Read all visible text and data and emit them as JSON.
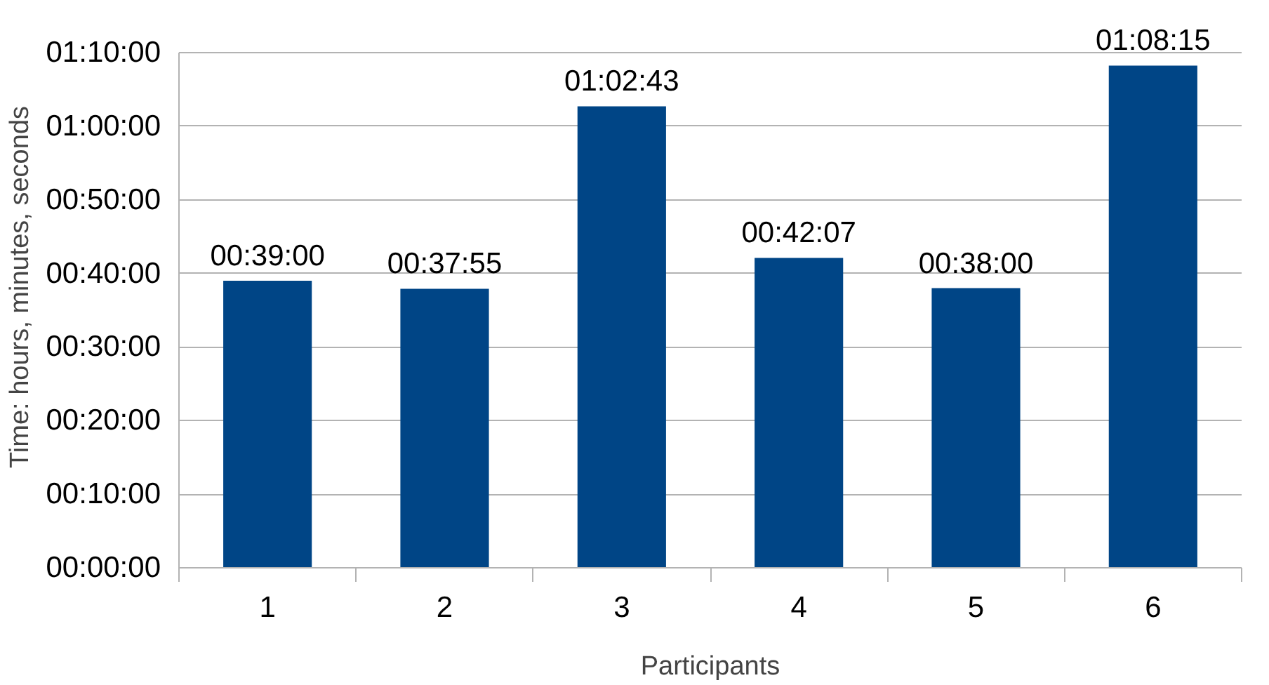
{
  "chart_data": {
    "type": "bar",
    "xlabel": "Participants",
    "ylabel": "Time: hours, minutes, seconds",
    "categories": [
      "1",
      "2",
      "3",
      "4",
      "5",
      "6"
    ],
    "values": [
      2340,
      2275,
      3763,
      2527,
      2280,
      4095
    ],
    "value_labels": [
      "00:39:00",
      "00:37:55",
      "01:02:43",
      "00:42:07",
      "00:38:00",
      "01:08:15"
    ],
    "color": "#004586",
    "ylim": [
      0,
      4200
    ],
    "yticks": [
      {
        "value": 0,
        "label": "00:00:00"
      },
      {
        "value": 600,
        "label": "00:10:00"
      },
      {
        "value": 1200,
        "label": "00:20:00"
      },
      {
        "value": 1800,
        "label": "00:30:00"
      },
      {
        "value": 2400,
        "label": "00:40:00"
      },
      {
        "value": 3000,
        "label": "00:50:00"
      },
      {
        "value": 3600,
        "label": "01:00:00"
      },
      {
        "value": 4200,
        "label": "01:10:00"
      }
    ],
    "grid": "y"
  }
}
